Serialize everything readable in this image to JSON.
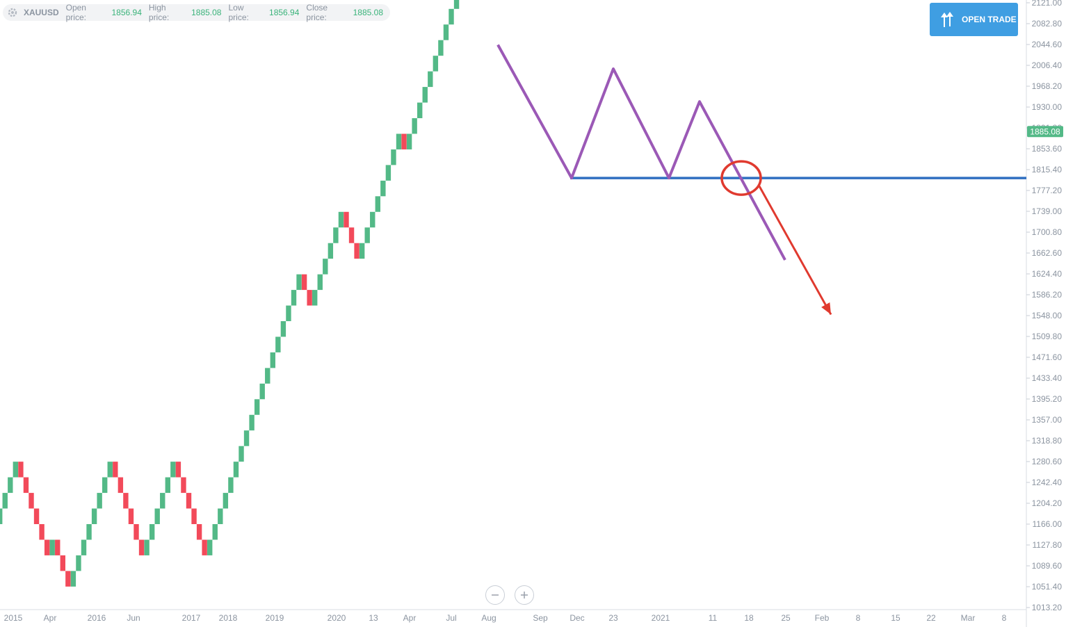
{
  "header": {
    "symbol": "XAUUSD",
    "open_label": "Open price:",
    "open_value": "1856.94",
    "high_label": "High price:",
    "high_value": "1885.08",
    "low_label": "Low price:",
    "low_value": "1856.94",
    "close_label": "Close price:",
    "close_value": "1885.08",
    "settings_icon": "gear-icon"
  },
  "open_trade": {
    "label": "OPEN TRADE",
    "icon": "up-down-arrows-icon",
    "color": "#3f9ee2"
  },
  "zoom": {
    "out_icon": "minus-icon",
    "in_icon": "plus-icon"
  },
  "colors": {
    "up": "#53b987",
    "down": "#f24a5a",
    "support": "#2f6fc1",
    "pattern": "#9b59b6",
    "forecast": "#e03a2f"
  },
  "chart_data": {
    "type": "renko",
    "symbol": "XAUUSD",
    "ylim": [
      1013.2,
      2121.0
    ],
    "y_ticks": [
      "2121.00",
      "2082.80",
      "2044.60",
      "2006.40",
      "1968.20",
      "1930.00",
      "1891.80",
      "1853.60",
      "1815.40",
      "1777.20",
      "1739.00",
      "1700.80",
      "1662.60",
      "1624.40",
      "1586.20",
      "1548.00",
      "1509.80",
      "1471.60",
      "1433.40",
      "1395.20",
      "1357.00",
      "1318.80",
      "1280.60",
      "1242.40",
      "1204.20",
      "1166.00",
      "1127.80",
      "1089.60",
      "1051.40",
      "1013.20"
    ],
    "x_ticks": [
      "2015",
      "Apr",
      "2016",
      "Jun",
      "2017",
      "2018",
      "2019",
      "2020",
      "13",
      "Apr",
      "Jul",
      "Aug",
      "Sep",
      "Dec",
      "23",
      "2021",
      "11",
      "18",
      "25",
      "Feb",
      "8",
      "15",
      "22",
      "Mar",
      "8"
    ],
    "current_price": "1885.08",
    "brick_size": 28.6,
    "brick_start": 1166.0,
    "bricks": "UUUUDDDDDDUDDDUUUUUUUUDDDDDDUUUUUUDDDDDDUUUUUUUUUUUUUUUUUUDDUUUUUUDDDUUUUUUUUDUUUUUUUUUUUUUUUUUUDDDDUDDDDDUU",
    "support_level": 1800,
    "pattern_path": [
      [
        2044,
        2035
      ],
      [
        1800,
        1800
      ],
      [
        2000,
        2005
      ],
      [
        1800,
        1800
      ],
      [
        1940,
        1945
      ],
      [
        1650,
        1655
      ]
    ],
    "forecast_arrow": {
      "from": 1785,
      "to": 1550
    }
  }
}
